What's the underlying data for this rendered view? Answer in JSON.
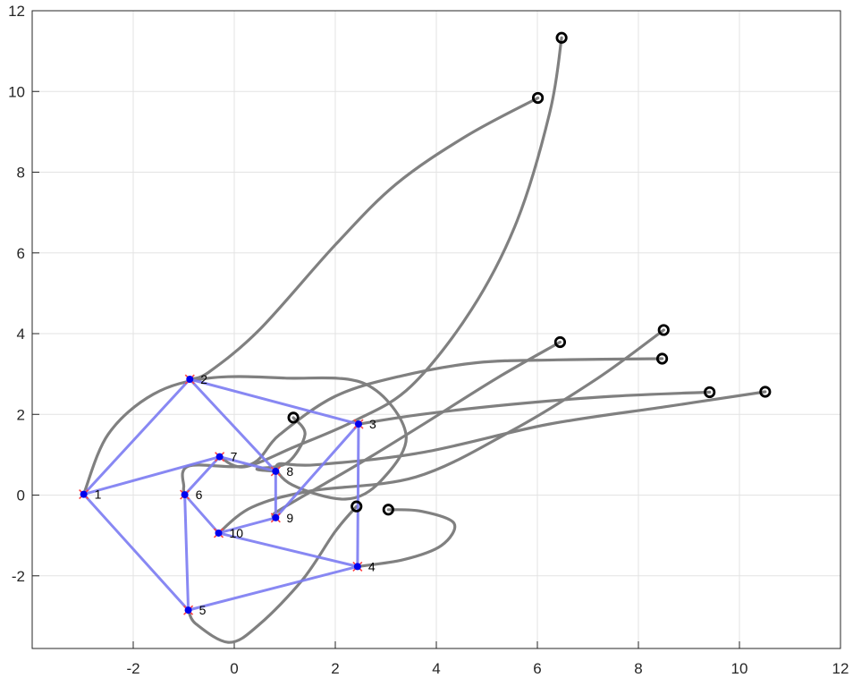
{
  "chart_data": {
    "type": "scatter",
    "title": "",
    "xlabel": "",
    "ylabel": "",
    "xlim": [
      -4,
      12
    ],
    "ylim": [
      -3.8,
      12
    ],
    "xticks": [
      -2,
      0,
      2,
      4,
      6,
      8,
      10,
      12
    ],
    "yticks": [
      -2,
      0,
      2,
      4,
      6,
      8,
      10,
      12
    ],
    "grid": true,
    "colors": {
      "edge": "#7b7bf2",
      "node": "#0000ee",
      "node_marker": "#ff4444",
      "trajectory": "#808080",
      "start_marker": "#000000"
    },
    "nodes": [
      {
        "id": "1",
        "x": -2.98,
        "y": 0.02
      },
      {
        "id": "2",
        "x": -0.88,
        "y": 2.87
      },
      {
        "id": "3",
        "x": 2.46,
        "y": 1.76
      },
      {
        "id": "4",
        "x": 2.44,
        "y": -1.77
      },
      {
        "id": "5",
        "x": -0.91,
        "y": -2.85
      },
      {
        "id": "6",
        "x": -0.98,
        "y": 0.01
      },
      {
        "id": "7",
        "x": -0.29,
        "y": 0.95
      },
      {
        "id": "8",
        "x": 0.82,
        "y": 0.59
      },
      {
        "id": "9",
        "x": 0.82,
        "y": -0.56
      },
      {
        "id": "10",
        "x": -0.31,
        "y": -0.94
      }
    ],
    "edges": [
      [
        1,
        2
      ],
      [
        2,
        3
      ],
      [
        3,
        4
      ],
      [
        4,
        5
      ],
      [
        5,
        1
      ],
      [
        1,
        7
      ],
      [
        2,
        8
      ],
      [
        3,
        9
      ],
      [
        4,
        10
      ],
      [
        5,
        6
      ],
      [
        6,
        7
      ],
      [
        7,
        8
      ],
      [
        8,
        9
      ],
      [
        9,
        10
      ],
      [
        10,
        6
      ]
    ],
    "trajectories": [
      {
        "points": [
          [
            6.01,
            9.84
          ],
          [
            4.6,
            8.9
          ],
          [
            3.2,
            7.7
          ],
          [
            2.0,
            6.2
          ],
          [
            0.5,
            4.1
          ],
          [
            -0.5,
            3.05
          ],
          [
            -0.88,
            2.87
          ]
        ]
      },
      {
        "points": [
          [
            6.48,
            11.33
          ],
          [
            6.25,
            9.5
          ],
          [
            5.6,
            6.8
          ],
          [
            4.7,
            4.6
          ],
          [
            3.5,
            2.7
          ],
          [
            2.4,
            1.85
          ],
          [
            1.2,
            1.2
          ],
          [
            0.2,
            0.7
          ],
          [
            -0.29,
            0.95
          ]
        ]
      },
      {
        "points": [
          [
            1.17,
            1.92
          ],
          [
            1.4,
            1.5
          ],
          [
            1.05,
            0.8
          ],
          [
            0.45,
            0.65
          ],
          [
            0.82,
            0.59
          ]
        ]
      },
      {
        "points": [
          [
            6.45,
            3.79
          ],
          [
            5.2,
            2.9
          ],
          [
            3.8,
            1.8
          ],
          [
            2.5,
            0.8
          ],
          [
            1.4,
            0.0
          ],
          [
            0.8,
            -0.45
          ],
          [
            0.82,
            -0.56
          ]
        ]
      },
      {
        "points": [
          [
            8.47,
            3.38
          ],
          [
            6.4,
            3.35
          ],
          [
            4.8,
            3.28
          ],
          [
            3.3,
            2.95
          ],
          [
            2.0,
            2.45
          ],
          [
            0.9,
            1.5
          ],
          [
            0.3,
            0.75
          ],
          [
            -0.9,
            0.72
          ],
          [
            -1.0,
            0.2
          ],
          [
            -0.98,
            0.01
          ]
        ]
      },
      {
        "points": [
          [
            8.5,
            4.09
          ],
          [
            7.2,
            2.9
          ],
          [
            5.5,
            1.6
          ],
          [
            3.6,
            0.45
          ],
          [
            1.5,
            0.1
          ],
          [
            0.35,
            -0.3
          ],
          [
            -0.31,
            -0.94
          ]
        ]
      },
      {
        "points": [
          [
            2.42,
            -0.28
          ],
          [
            2.0,
            -0.9
          ],
          [
            1.35,
            -2.1
          ],
          [
            0.5,
            -3.2
          ],
          [
            -0.1,
            -3.65
          ],
          [
            -0.75,
            -3.2
          ],
          [
            -0.91,
            -2.85
          ]
        ]
      },
      {
        "points": [
          [
            3.05,
            -0.36
          ],
          [
            3.7,
            -0.4
          ],
          [
            4.35,
            -0.7
          ],
          [
            4.1,
            -1.25
          ],
          [
            3.35,
            -1.6
          ],
          [
            2.44,
            -1.77
          ]
        ]
      },
      {
        "points": [
          [
            9.41,
            2.55
          ],
          [
            7.5,
            2.45
          ],
          [
            5.5,
            2.25
          ],
          [
            3.7,
            2.0
          ],
          [
            2.46,
            1.76
          ]
        ]
      },
      {
        "points": [
          [
            10.51,
            2.56
          ],
          [
            8.6,
            2.2
          ],
          [
            6.2,
            1.75
          ],
          [
            3.7,
            1.05
          ],
          [
            1.6,
            0.75
          ],
          [
            0.85,
            0.75
          ],
          [
            1.15,
            0.25
          ],
          [
            2.2,
            -0.1
          ],
          [
            2.9,
            0.35
          ],
          [
            3.4,
            1.5
          ],
          [
            2.6,
            2.75
          ],
          [
            1.0,
            2.9
          ],
          [
            -0.5,
            2.9
          ],
          [
            -1.6,
            2.5
          ],
          [
            -2.5,
            1.5
          ],
          [
            -2.98,
            0.02
          ]
        ]
      }
    ]
  }
}
